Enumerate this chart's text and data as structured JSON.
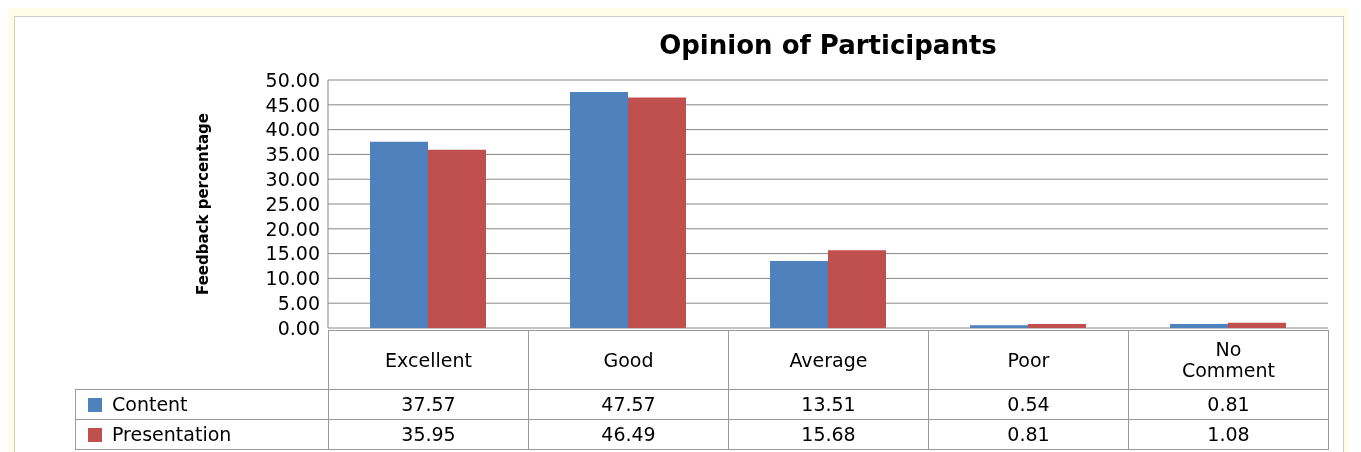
{
  "chart_data": {
    "type": "bar",
    "title": "Opinion of Participants",
    "ylabel": "Feedback percentage",
    "categories": [
      "Excellent",
      "Good",
      "Average",
      "Poor",
      "No Comment"
    ],
    "series": [
      {
        "name": "Content",
        "color": "#4f81bd",
        "values": [
          37.57,
          47.57,
          13.51,
          0.54,
          0.81
        ]
      },
      {
        "name": "Presentation",
        "color": "#c0504d",
        "values": [
          35.95,
          46.49,
          15.68,
          0.81,
          1.08
        ]
      }
    ],
    "ylim": [
      0,
      50
    ],
    "yticks": [
      {
        "value": 0,
        "label": "0.00"
      },
      {
        "value": 5,
        "label": "5.00"
      },
      {
        "value": 10,
        "label": "10.00"
      },
      {
        "value": 15,
        "label": "15.00"
      },
      {
        "value": 20,
        "label": "20.00"
      },
      {
        "value": 25,
        "label": "25.00"
      },
      {
        "value": 30,
        "label": "30.00"
      },
      {
        "value": 35,
        "label": "35.00"
      },
      {
        "value": 40,
        "label": "40.00"
      },
      {
        "value": 45,
        "label": "45.00"
      },
      {
        "value": 50,
        "label": "50.00"
      }
    ],
    "grid": "y",
    "legend": "bottom",
    "data_labels": true
  }
}
